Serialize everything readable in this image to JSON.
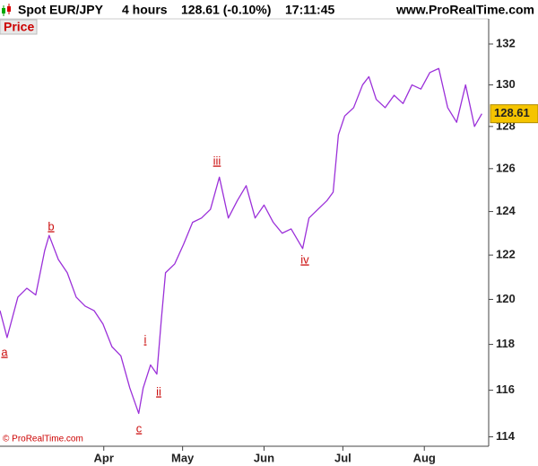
{
  "chart_data": {
    "type": "line",
    "header": {
      "symbol": "Spot EUR/JPY",
      "timeframe": "4 hours",
      "quote": "128.61 (-0.10%)",
      "time": "17:11:45",
      "site": "www.ProRealTime.com"
    },
    "panel_label": "Price",
    "copyright": "© ProRealTime.com",
    "annotations": [
      "a",
      "b",
      "c",
      "i",
      "ii",
      "iii",
      "iv"
    ],
    "x": [
      0,
      2.7,
      6.8,
      10.2,
      13.6,
      17,
      18.7,
      22.2,
      25.6,
      29,
      32.4,
      35.8,
      39.2,
      42.6,
      46,
      49.4,
      52.8,
      54.5,
      57.3,
      59.7,
      61.4,
      63,
      66.5,
      69.9,
      73.3,
      76.7,
      80.1,
      83.5,
      86.9,
      90.3,
      93.7,
      97.1,
      100.5,
      104,
      107.4,
      110.8,
      115.2,
      117.6,
      121,
      124.4,
      126.8,
      128.8,
      131.2,
      134.6,
      138,
      140.4,
      143.2,
      146.6,
      150,
      153.4,
      156.8,
      160.2,
      163.6,
      167,
      170.4,
      173.8,
      177.2,
      180.6,
      183.4
    ],
    "series": [
      {
        "name": "Spot EUR/JPY",
        "color": "#9b30d9",
        "values": [
          119.5,
          118.3,
          120.1,
          120.5,
          120.2,
          122.2,
          122.9,
          121.8,
          121.2,
          120.1,
          119.7,
          119.5,
          118.9,
          117.9,
          117.5,
          116.1,
          115.0,
          116.1,
          117.1,
          116.7,
          119.1,
          121.2,
          121.6,
          122.5,
          123.5,
          123.7,
          124.1,
          125.6,
          123.7,
          124.5,
          125.2,
          123.7,
          124.3,
          123.5,
          123.0,
          123.2,
          122.3,
          123.7,
          124.1,
          124.5,
          124.9,
          127.6,
          128.5,
          128.9,
          130.0,
          130.4,
          129.3,
          128.9,
          129.5,
          129.1,
          130.0,
          129.8,
          130.6,
          130.8,
          128.9,
          128.2,
          130.0,
          128.0,
          128.61
        ]
      }
    ],
    "xlim": [
      0,
      186
    ],
    "xticks": [
      {
        "value": 39.5,
        "label": "Apr"
      },
      {
        "value": 69.5,
        "label": "May"
      },
      {
        "value": 100.5,
        "label": "Jun"
      },
      {
        "value": 130.5,
        "label": "Jul"
      },
      {
        "value": 161.5,
        "label": "Aug"
      }
    ],
    "ylim": [
      113.6,
      133.2
    ],
    "yticks": [
      114,
      116,
      118,
      120,
      122,
      124,
      126,
      128,
      130,
      132
    ],
    "log": true,
    "grid": false
  }
}
